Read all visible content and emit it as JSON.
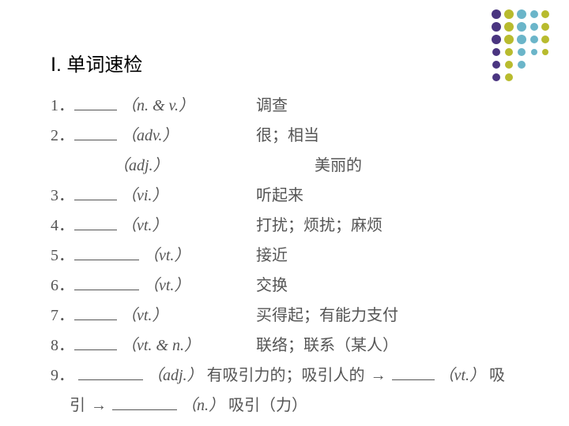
{
  "title": "Ⅰ. 单词速检",
  "items": [
    {
      "num": "1．",
      "blank_w": 54,
      "pos": "（n. & v.）",
      "def": "调查"
    },
    {
      "num": "2．",
      "blank_w": 54,
      "pos": "（adv.）",
      "def": "很；相当"
    },
    {
      "num": "",
      "blank_w": 0,
      "pos": "（adj.）",
      "def": "美丽的",
      "indent": 74
    },
    {
      "num": "3．",
      "blank_w": 54,
      "pos": "（vi.）",
      "def": "听起来"
    },
    {
      "num": "4．",
      "blank_w": 54,
      "pos": "（vt.）",
      "def": "打扰；烦扰；麻烦"
    },
    {
      "num": "5．",
      "blank_w": 82,
      "pos": "（vt.）",
      "def": "接近"
    },
    {
      "num": "6．",
      "blank_w": 82,
      "pos": "（vt.）",
      "def": "交换"
    },
    {
      "num": "7．",
      "blank_w": 54,
      "pos": "（vt.）",
      "def": "买得起；有能力支付"
    },
    {
      "num": "8．",
      "blank_w": 54,
      "pos": "（vt. & n.）",
      "def": "联络；联系（某人）"
    }
  ],
  "item9": {
    "num": "9．",
    "blank1_w": 82,
    "pos1": "（adj.）",
    "def1": "有吸引力的；吸引人的",
    "blank2_w": 54,
    "pos2": "（vt.）",
    "def2": "吸",
    "cont": "引",
    "blank3_w": 82,
    "pos3": "（n.）",
    "def3": "吸引（力）"
  },
  "dots": {
    "cols": [
      {
        "x": 8,
        "color": "#4a3580",
        "r": 6
      },
      {
        "x": 24,
        "color": "#b8bb2e",
        "r": 6
      },
      {
        "x": 40,
        "color": "#6bb5c9",
        "r": 6
      },
      {
        "x": 56,
        "color": "#6bb5c9",
        "r": 5
      },
      {
        "x": 70,
        "color": "#b8bb2e",
        "r": 5
      }
    ],
    "rows": [
      8,
      24,
      40,
      56,
      72,
      88
    ]
  }
}
